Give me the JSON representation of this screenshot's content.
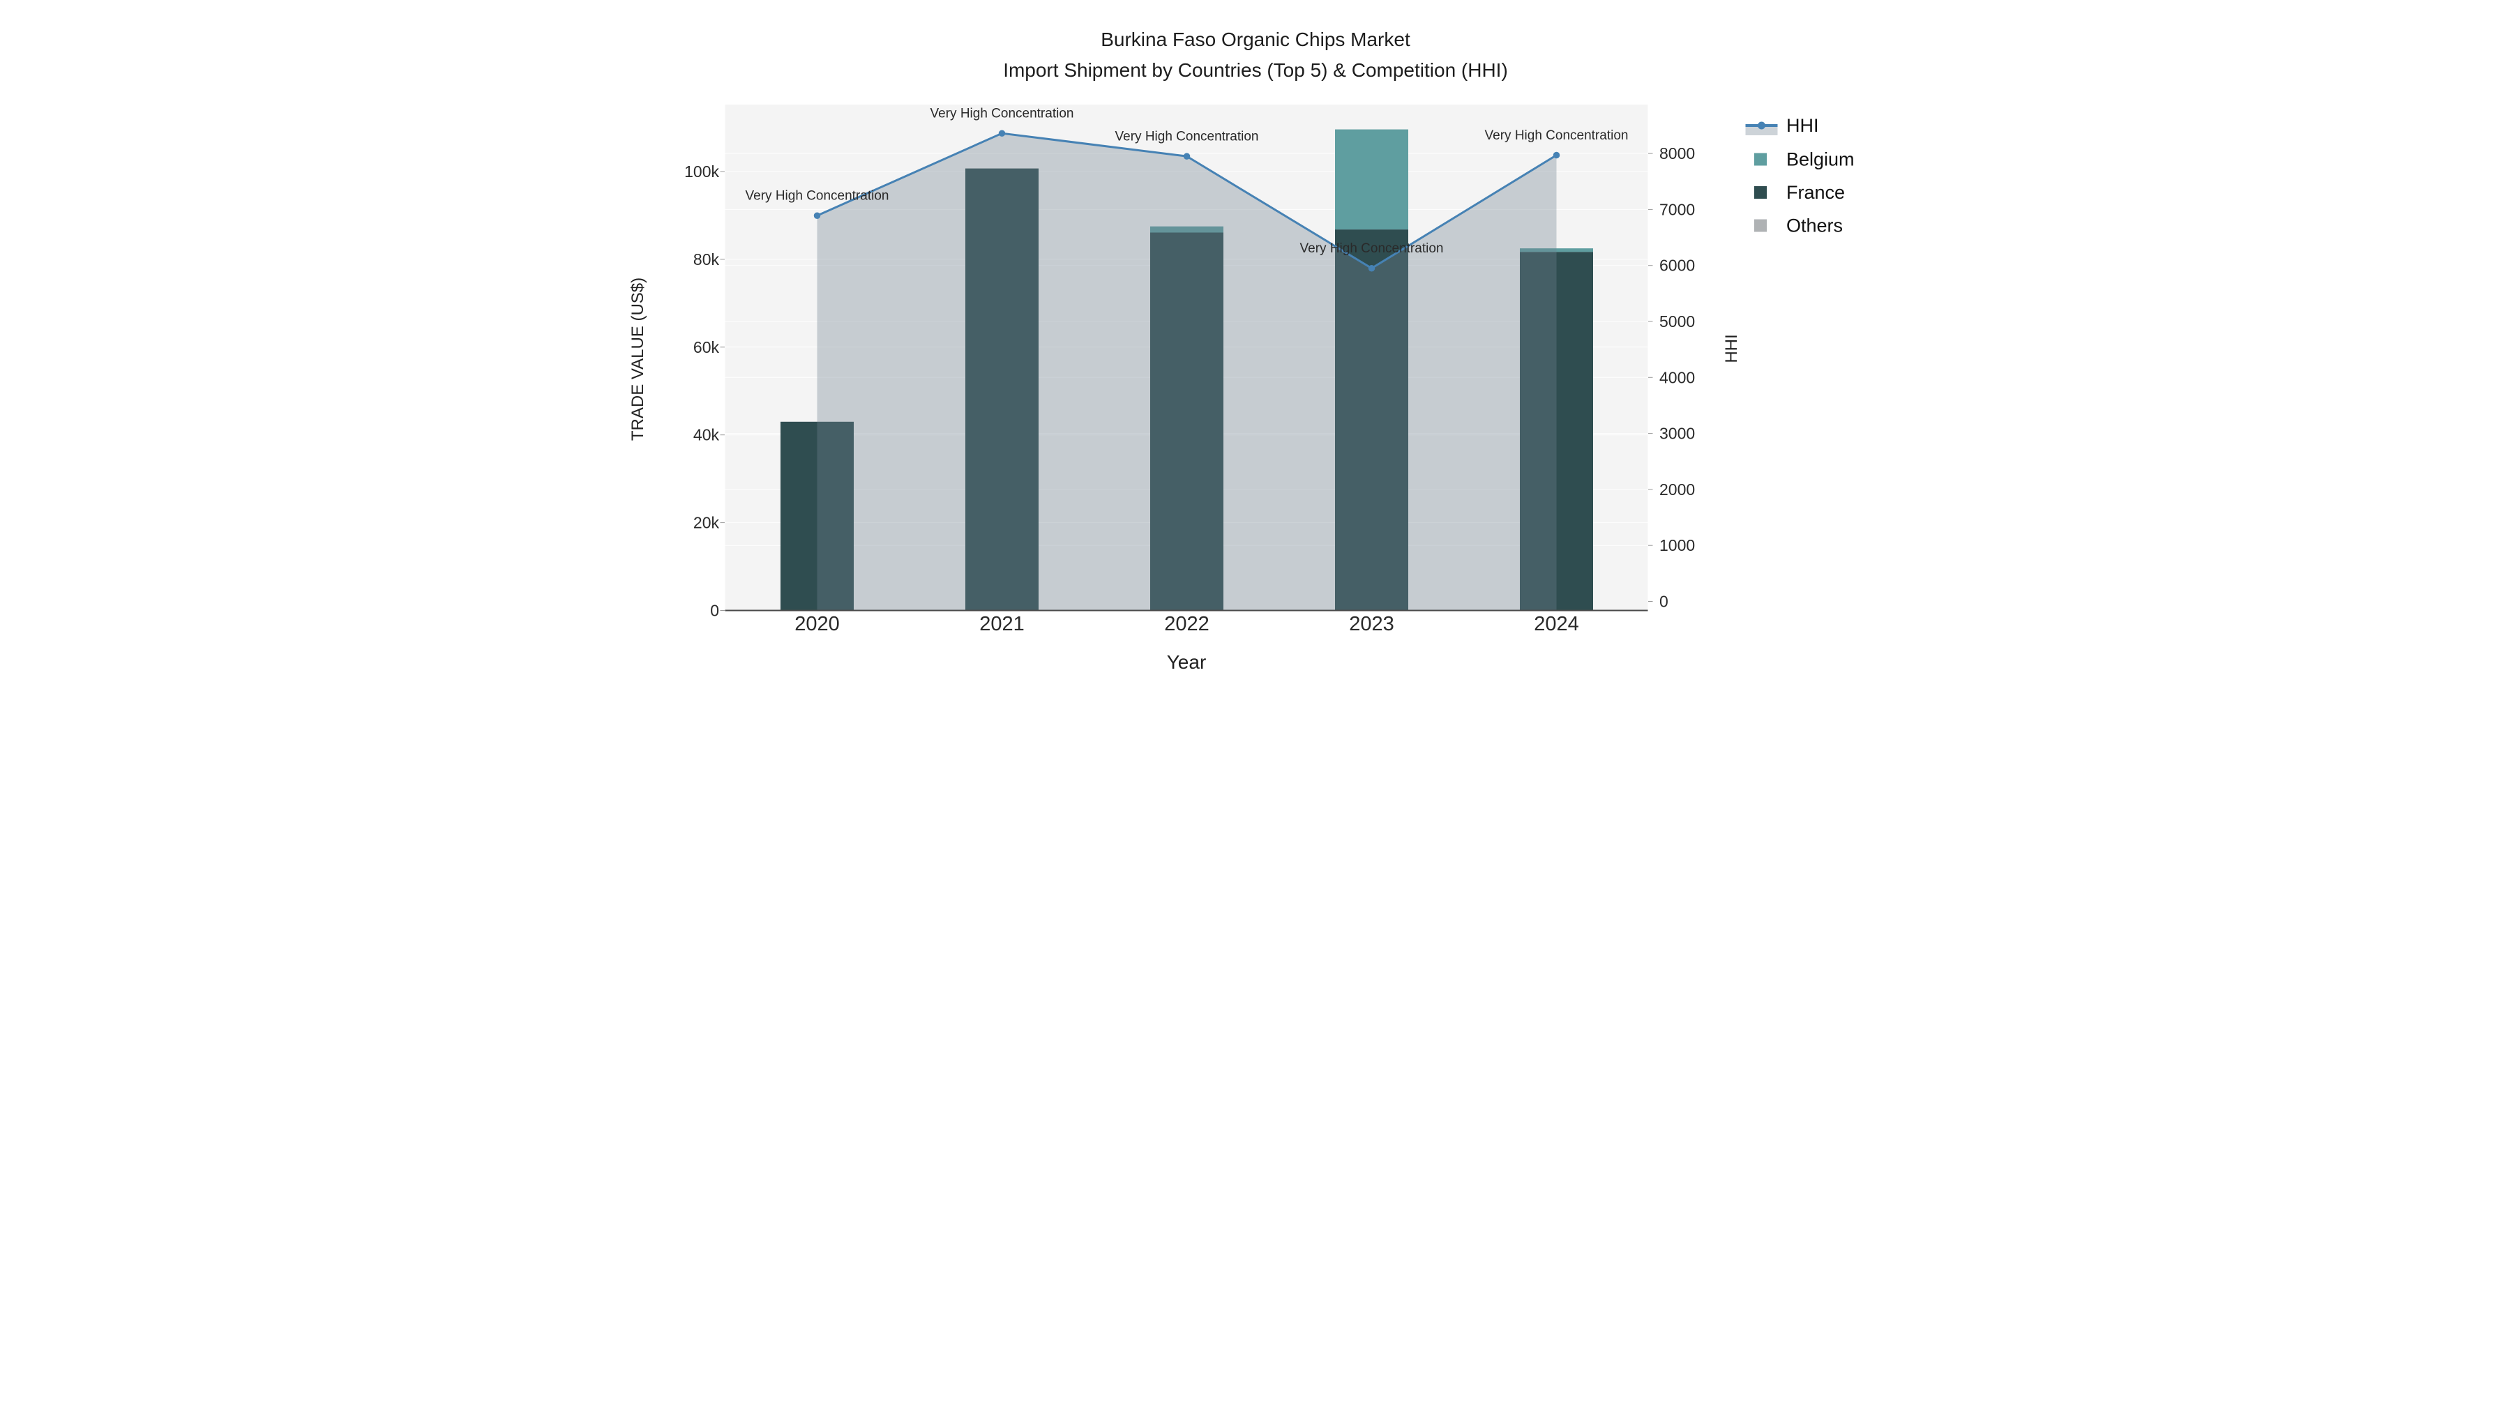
{
  "figure": {
    "title_line1": "Burkina Faso Organic Chips Market",
    "title_line2": "Import Shipment by Countries (Top 5) & Competition (HHI)"
  },
  "axes": {
    "x_title": "Year",
    "left_title": "TRADE VALUE (US$)",
    "right_title": "HHI",
    "left_ticks": [
      {
        "v": 0,
        "label": "0"
      },
      {
        "v": 20000,
        "label": "20k"
      },
      {
        "v": 40000,
        "label": "40k"
      },
      {
        "v": 60000,
        "label": "60k"
      },
      {
        "v": 80000,
        "label": "80k"
      },
      {
        "v": 100000,
        "label": "100k"
      }
    ],
    "right_ticks": [
      {
        "v": 0,
        "label": "0"
      },
      {
        "v": 1000,
        "label": "1000"
      },
      {
        "v": 2000,
        "label": "2000"
      },
      {
        "v": 3000,
        "label": "3000"
      },
      {
        "v": 4000,
        "label": "4000"
      },
      {
        "v": 5000,
        "label": "5000"
      },
      {
        "v": 6000,
        "label": "6000"
      },
      {
        "v": 7000,
        "label": "7000"
      },
      {
        "v": 8000,
        "label": "8000"
      }
    ]
  },
  "legend": {
    "items": [
      {
        "label": "HHI"
      },
      {
        "label": "Belgium"
      },
      {
        "label": "France"
      },
      {
        "label": "Others"
      }
    ]
  },
  "chart_data": {
    "type": "combo_stacked_bar_line",
    "title": "Burkina Faso Organic Chips Market — Import Shipment by Countries (Top 5) & Competition (HHI)",
    "categories": [
      "2020",
      "2021",
      "2022",
      "2023",
      "2024"
    ],
    "bar_series": [
      {
        "name": "France",
        "color": "#2F4D50",
        "values": [
          43000,
          100700,
          86100,
          86800,
          81700
        ]
      },
      {
        "name": "Belgium",
        "color": "#5F9EA0",
        "values": [
          0,
          0,
          1400,
          22800,
          800
        ]
      },
      {
        "name": "Others",
        "color": "#AFB2B4",
        "values": [
          0,
          0,
          0,
          0,
          0
        ]
      }
    ],
    "line_series": {
      "name": "HHI",
      "color": "#4682B4",
      "area_fill": "rgba(112,128,144,0.35)",
      "values": [
        6890,
        8360,
        7950,
        5950,
        7970
      ]
    },
    "annotations": [
      "Very High Concentration",
      "Very High Concentration",
      "Very High Concentration",
      "Very High Concentration",
      "Very High Concentration"
    ],
    "xlabel": "Year",
    "ylabel_left": "TRADE VALUE (US$)",
    "ylabel_right": "HHI",
    "ylim_left": [
      0,
      115000
    ],
    "ylim_right": [
      0,
      8870
    ],
    "legend_position": "top-right-outside",
    "plot_background": "#F4F4F4",
    "grid": "subtle white gridlines for both y axes"
  }
}
